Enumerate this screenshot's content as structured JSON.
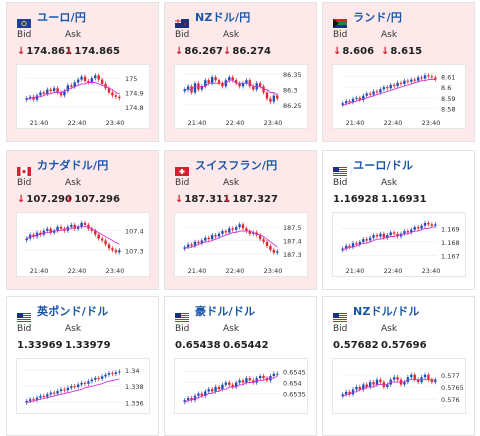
{
  "labels": {
    "bid": "Bid",
    "ask": "Ask"
  },
  "colors": {
    "up_candle": "#1f4fb5",
    "down_candle": "#e0262f",
    "ma_line": "#d633d6",
    "ma_line2": "#2bb8a8",
    "title": "#1a56a8",
    "down_bg": "#fde9ea"
  },
  "cards": [
    {
      "pair": "ユーロ/円",
      "flag": "eu-flag-icon",
      "trend": "down",
      "bid": "174.861",
      "ask": "174.865",
      "chart_data": {
        "type": "candlestick",
        "x_ticks": [
          "21:40",
          "22:40",
          "23:40"
        ],
        "y_ticks": [
          "175",
          "174.9",
          "174.8"
        ],
        "ylim": [
          174.75,
          175.05
        ],
        "closes": [
          174.86,
          174.87,
          174.85,
          174.88,
          174.9,
          174.89,
          174.92,
          174.91,
          174.93,
          174.9,
          174.88,
          174.91,
          174.95,
          174.94,
          174.97,
          174.99,
          175.01,
          174.98,
          174.97,
          175.0,
          175.02,
          174.99,
          174.96,
          174.93,
          174.9,
          174.88,
          174.87,
          174.86
        ],
        "ma": [
          174.85,
          174.86,
          174.86,
          174.87,
          174.87,
          174.88,
          174.89,
          174.89,
          174.9,
          174.9,
          174.9,
          174.91,
          174.92,
          174.93,
          174.94,
          174.95,
          174.96,
          174.96,
          174.97,
          174.97,
          174.97,
          174.96,
          174.95,
          174.94,
          174.93,
          174.92,
          174.9,
          174.89
        ]
      }
    },
    {
      "pair": "NZドル/円",
      "flag": "nz-flag-icon",
      "trend": "down",
      "bid": "86.267",
      "ask": "86.274",
      "chart_data": {
        "type": "candlestick",
        "x_ticks": [
          "21:40",
          "22:40",
          "23:40"
        ],
        "y_ticks": [
          "86.35",
          "86.3",
          "86.25"
        ],
        "ylim": [
          86.22,
          86.36
        ],
        "closes": [
          86.3,
          86.31,
          86.29,
          86.32,
          86.3,
          86.31,
          86.33,
          86.32,
          86.34,
          86.33,
          86.32,
          86.31,
          86.33,
          86.34,
          86.33,
          86.32,
          86.31,
          86.32,
          86.33,
          86.31,
          86.3,
          86.32,
          86.31,
          86.29,
          86.27,
          86.26,
          86.28,
          86.27
        ],
        "ma": [
          86.3,
          86.3,
          86.3,
          86.31,
          86.31,
          86.31,
          86.31,
          86.32,
          86.32,
          86.32,
          86.32,
          86.32,
          86.32,
          86.33,
          86.33,
          86.32,
          86.32,
          86.32,
          86.32,
          86.32,
          86.31,
          86.31,
          86.31,
          86.3,
          86.3,
          86.29,
          86.29,
          86.28
        ]
      }
    },
    {
      "pair": "ランド/円",
      "flag": "za-flag-icon",
      "trend": "down",
      "bid": "8.606",
      "ask": "8.615",
      "chart_data": {
        "type": "candlestick",
        "x_ticks": [
          "21:40",
          "22:40",
          "23:40"
        ],
        "y_ticks": [
          "8.61",
          "8.6",
          "8.59",
          "8.58"
        ],
        "ylim": [
          8.575,
          8.615
        ],
        "closes": [
          8.585,
          8.587,
          8.586,
          8.589,
          8.59,
          8.588,
          8.592,
          8.594,
          8.593,
          8.596,
          8.595,
          8.598,
          8.6,
          8.599,
          8.602,
          8.601,
          8.604,
          8.603,
          8.606,
          8.605,
          8.607,
          8.606,
          8.609,
          8.608,
          8.611,
          8.61,
          8.609,
          8.607
        ],
        "ma": [
          8.583,
          8.584,
          8.585,
          8.586,
          8.587,
          8.588,
          8.589,
          8.59,
          8.591,
          8.592,
          8.593,
          8.594,
          8.595,
          8.596,
          8.597,
          8.598,
          8.599,
          8.6,
          8.601,
          8.602,
          8.603,
          8.604,
          8.605,
          8.606,
          8.606,
          8.607,
          8.607,
          8.607
        ]
      }
    },
    {
      "pair": "カナダドル/円",
      "flag": "ca-flag-icon",
      "trend": "down",
      "bid": "107.290",
      "ask": "107.296",
      "chart_data": {
        "type": "candlestick",
        "x_ticks": [
          "21:40",
          "22:40",
          "23:40"
        ],
        "y_ticks": [
          "107.4",
          "107.3"
        ],
        "ylim": [
          107.24,
          107.46
        ],
        "closes": [
          107.36,
          107.38,
          107.37,
          107.39,
          107.38,
          107.4,
          107.41,
          107.39,
          107.4,
          107.42,
          107.41,
          107.4,
          107.42,
          107.43,
          107.41,
          107.42,
          107.44,
          107.43,
          107.41,
          107.4,
          107.38,
          107.36,
          107.35,
          107.33,
          107.31,
          107.3,
          107.29,
          107.3
        ],
        "ma": [
          107.36,
          107.37,
          107.37,
          107.38,
          107.38,
          107.39,
          107.39,
          107.39,
          107.4,
          107.4,
          107.4,
          107.41,
          107.41,
          107.41,
          107.42,
          107.42,
          107.42,
          107.42,
          107.42,
          107.41,
          107.4,
          107.39,
          107.38,
          107.37,
          107.36,
          107.35,
          107.34,
          107.33
        ]
      }
    },
    {
      "pair": "スイスフラン/円",
      "flag": "ch-flag-icon",
      "trend": "down",
      "bid": "187.311",
      "ask": "187.327",
      "chart_data": {
        "type": "candlestick",
        "x_ticks": [
          "21:40",
          "22:40",
          "23:40"
        ],
        "y_ticks": [
          "187.5",
          "187.4",
          "187.3"
        ],
        "ylim": [
          187.24,
          187.56
        ],
        "closes": [
          187.35,
          187.37,
          187.36,
          187.39,
          187.38,
          187.4,
          187.42,
          187.41,
          187.44,
          187.43,
          187.45,
          187.47,
          187.46,
          187.49,
          187.48,
          187.5,
          187.52,
          187.49,
          187.47,
          187.45,
          187.46,
          187.44,
          187.41,
          187.39,
          187.36,
          187.33,
          187.31,
          187.32
        ],
        "ma": [
          187.34,
          187.35,
          187.35,
          187.36,
          187.37,
          187.38,
          187.39,
          187.39,
          187.4,
          187.41,
          187.42,
          187.43,
          187.44,
          187.45,
          187.46,
          187.46,
          187.47,
          187.47,
          187.47,
          187.47,
          187.46,
          187.45,
          187.44,
          187.43,
          187.41,
          187.39,
          187.37,
          187.35
        ]
      }
    },
    {
      "pair": "ユーロ/ドル",
      "flag": "eu-us-flag-icon",
      "trend": "up",
      "bid": "1.16928",
      "ask": "1.16931",
      "chart_data": {
        "type": "candlestick",
        "x_ticks": [
          "21:40",
          "22:40",
          "23:40"
        ],
        "y_ticks": [
          "1.169",
          "1.168",
          "1.167"
        ],
        "ylim": [
          1.1665,
          1.1697
        ],
        "closes": [
          1.1675,
          1.1677,
          1.1676,
          1.1679,
          1.1678,
          1.168,
          1.1682,
          1.1681,
          1.1683,
          1.1685,
          1.1684,
          1.1686,
          1.1683,
          1.1685,
          1.1687,
          1.1686,
          1.1684,
          1.1686,
          1.1688,
          1.1687,
          1.1689,
          1.1691,
          1.169,
          1.1692,
          1.1694,
          1.1693,
          1.1692,
          1.1693
        ],
        "ma": [
          1.1674,
          1.1675,
          1.1676,
          1.1676,
          1.1677,
          1.1678,
          1.1679,
          1.1679,
          1.168,
          1.1681,
          1.1682,
          1.1682,
          1.1683,
          1.1683,
          1.1684,
          1.1684,
          1.1685,
          1.1685,
          1.1686,
          1.1686,
          1.1687,
          1.1688,
          1.1688,
          1.1689,
          1.169,
          1.169,
          1.1691,
          1.1691
        ]
      }
    },
    {
      "pair": "英ポンド/ドル",
      "flag": "gb-us-flag-icon",
      "trend": "up",
      "bid": "1.33969",
      "ask": "1.33979",
      "chart_data": {
        "type": "candlestick",
        "x_ticks": [],
        "y_ticks": [
          "1.34",
          "1.338",
          "1.336"
        ],
        "ylim": [
          1.3352,
          1.3406
        ],
        "closes": [
          1.3362,
          1.3364,
          1.3363,
          1.3366,
          1.3368,
          1.3367,
          1.337,
          1.3372,
          1.3371,
          1.3374,
          1.3376,
          1.3375,
          1.3378,
          1.338,
          1.3379,
          1.3382,
          1.3384,
          1.3383,
          1.3386,
          1.3388,
          1.339,
          1.3389,
          1.3392,
          1.3394,
          1.3396,
          1.3395,
          1.3397,
          1.3398
        ],
        "ma": [
          1.336,
          1.3361,
          1.3362,
          1.3363,
          1.3364,
          1.3365,
          1.3366,
          1.3367,
          1.3368,
          1.3369,
          1.337,
          1.3371,
          1.3372,
          1.3373,
          1.3374,
          1.3375,
          1.3376,
          1.3378,
          1.3379,
          1.338,
          1.3381,
          1.3382,
          1.3383,
          1.3385,
          1.3386,
          1.3387,
          1.3388,
          1.3389
        ]
      }
    },
    {
      "pair": "豪ドル/ドル",
      "flag": "au-us-flag-icon",
      "trend": "up",
      "bid": "0.65438",
      "ask": "0.65442",
      "chart_data": {
        "type": "candlestick",
        "x_ticks": [],
        "y_ticks": [
          "0.6545",
          "0.654",
          "0.6535"
        ],
        "ylim": [
          0.6528,
          0.6548
        ],
        "closes": [
          0.6532,
          0.6533,
          0.6532,
          0.6534,
          0.6535,
          0.6534,
          0.6536,
          0.6537,
          0.6536,
          0.6538,
          0.6537,
          0.6539,
          0.654,
          0.6539,
          0.6538,
          0.654,
          0.6541,
          0.654,
          0.6542,
          0.6541,
          0.654,
          0.6542,
          0.6543,
          0.6542,
          0.6541,
          0.6543,
          0.6544,
          0.6544
        ],
        "ma": [
          0.6531,
          0.6532,
          0.6532,
          0.6533,
          0.6533,
          0.6534,
          0.6534,
          0.6535,
          0.6535,
          0.6536,
          0.6536,
          0.6537,
          0.6537,
          0.6538,
          0.6538,
          0.6538,
          0.6539,
          0.6539,
          0.654,
          0.654,
          0.654,
          0.6541,
          0.6541,
          0.6541,
          0.6542,
          0.6542,
          0.6542,
          0.6543
        ]
      }
    },
    {
      "pair": "NZドル/ドル",
      "flag": "nz-us-flag-icon",
      "trend": "up",
      "bid": "0.57682",
      "ask": "0.57696",
      "chart_data": {
        "type": "candlestick",
        "x_ticks": [],
        "y_ticks": [
          "0.577",
          "0.5765",
          "0.576"
        ],
        "ylim": [
          0.5756,
          0.5774
        ],
        "closes": [
          0.5762,
          0.5763,
          0.5762,
          0.5764,
          0.5765,
          0.5764,
          0.5766,
          0.5765,
          0.5767,
          0.5766,
          0.5768,
          0.5767,
          0.5765,
          0.5766,
          0.5768,
          0.5769,
          0.5768,
          0.5766,
          0.5767,
          0.5769,
          0.577,
          0.5768,
          0.5767,
          0.5769,
          0.577,
          0.5768,
          0.5767,
          0.5768
        ],
        "ma": [
          0.5761,
          0.5762,
          0.5762,
          0.5763,
          0.5763,
          0.5764,
          0.5764,
          0.5765,
          0.5765,
          0.5765,
          0.5766,
          0.5766,
          0.5766,
          0.5766,
          0.5767,
          0.5767,
          0.5767,
          0.5767,
          0.5767,
          0.5768,
          0.5768,
          0.5768,
          0.5768,
          0.5768,
          0.5768,
          0.5768,
          0.5768,
          0.5768
        ]
      }
    }
  ]
}
